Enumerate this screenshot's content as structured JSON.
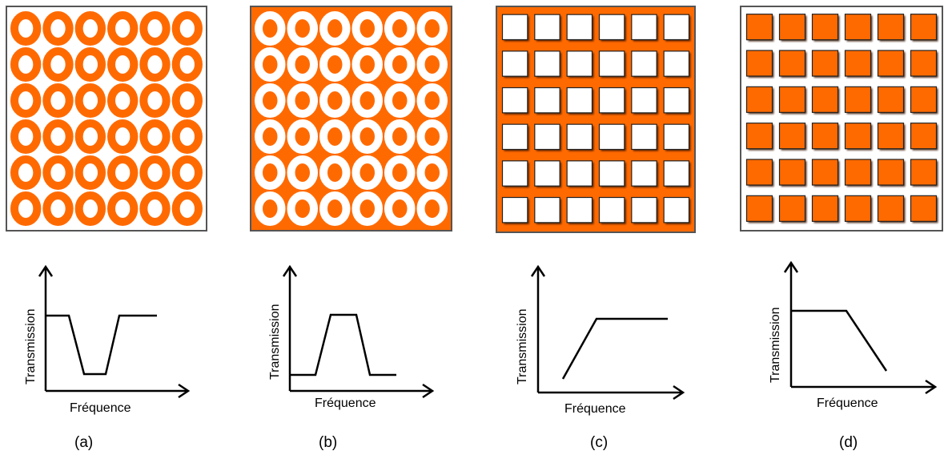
{
  "colors": {
    "orange": "#ff6a00",
    "frame": "#555555",
    "shadow": "#3a1400",
    "line": "#000000"
  },
  "panels": [
    {
      "id": "a",
      "label": "(a)",
      "pattern": "orange-rings-on-white",
      "grid": [
        6,
        6
      ],
      "response": "band-stop",
      "ylabel": "Transmission",
      "xlabel": "Fréquence"
    },
    {
      "id": "b",
      "label": "(b)",
      "pattern": "white-rings-on-orange",
      "grid": [
        6,
        6
      ],
      "response": "band-pass",
      "ylabel": "Transmission",
      "xlabel": "Fréquence"
    },
    {
      "id": "c",
      "label": "(c)",
      "pattern": "white-squares-on-orange",
      "grid": [
        6,
        6
      ],
      "response": "high-pass",
      "ylabel": "Transmission",
      "xlabel": "Fréquence"
    },
    {
      "id": "d",
      "label": "(d)",
      "pattern": "orange-squares-on-white",
      "grid": [
        6,
        6
      ],
      "response": "low-pass",
      "ylabel": "Transmission",
      "xlabel": "Fréquence"
    }
  ]
}
